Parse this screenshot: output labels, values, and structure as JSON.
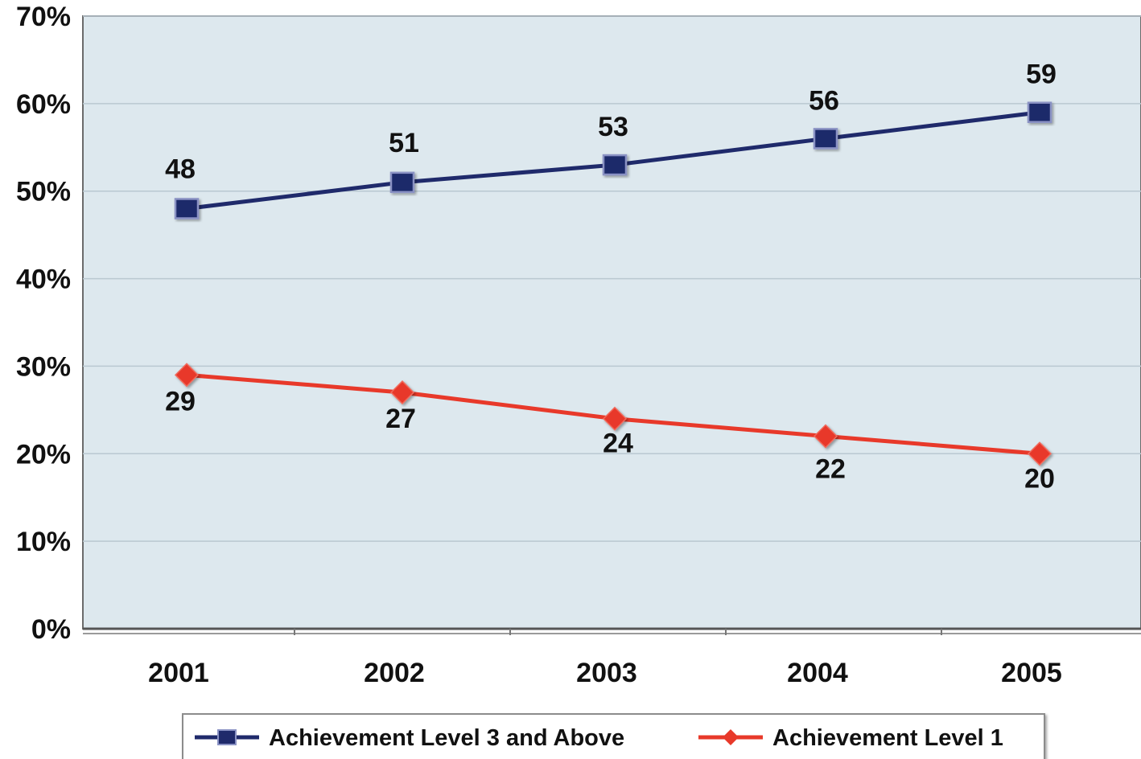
{
  "chart_data": {
    "type": "line",
    "categories": [
      "2001",
      "2002",
      "2003",
      "2004",
      "2005"
    ],
    "series": [
      {
        "name": "Achievement Level 3 and Above",
        "values": [
          48,
          51,
          53,
          56,
          59
        ],
        "labels": [
          "48",
          "51",
          "53",
          "56",
          "59"
        ],
        "color": "#1f2a6b",
        "marker": "square"
      },
      {
        "name": "Achievement Level 1",
        "values": [
          29,
          27,
          24,
          22,
          20
        ],
        "labels": [
          "29",
          "27",
          "24",
          "22",
          "20"
        ],
        "color": "#e8392a",
        "marker": "diamond"
      }
    ],
    "ylim": [
      0,
      70
    ],
    "yticks": [
      0,
      10,
      20,
      30,
      40,
      50,
      60,
      70
    ],
    "ytick_labels": [
      "0%",
      "10%",
      "20%",
      "30%",
      "40%",
      "50%",
      "60%",
      "70%"
    ],
    "grid": true,
    "legend_position": "bottom",
    "plot_background": "#dde8ee"
  }
}
